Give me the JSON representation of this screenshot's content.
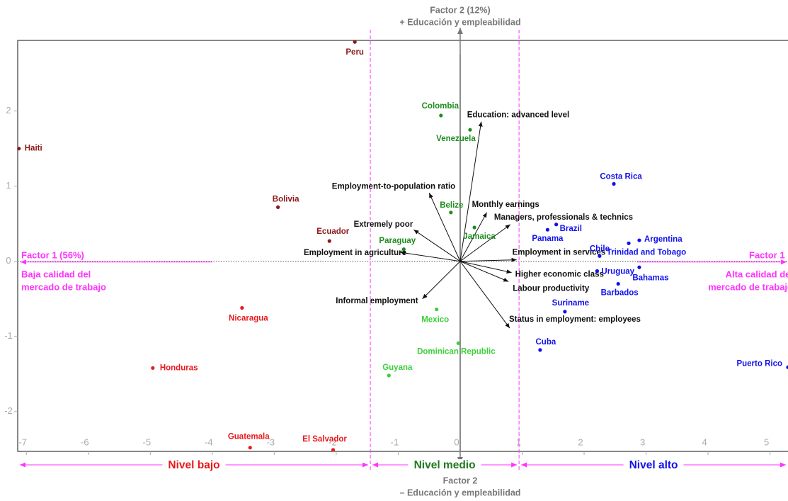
{
  "chart_data": {
    "type": "biplot",
    "top_label": "Factor 2 (12%)",
    "top_sublabel": "+ Educación y empleabilidad",
    "bottom_label": "Factor 2",
    "bottom_sublabel": "– Educación y empleabilidad",
    "left_label": "Factor 1 (56%)",
    "left_sublabel": [
      "Baja calidad del",
      "mercado de trabajo"
    ],
    "right_label": "Factor 1",
    "right_sublabel": [
      "Alta calidad del",
      "mercado de trabajo"
    ],
    "xlim": [
      -7.14,
      5.29
    ],
    "ylim": [
      -2.53,
      2.94
    ],
    "xticks": [
      -7,
      -6,
      -5,
      -4,
      -3,
      -2,
      -1,
      0,
      1,
      2,
      3,
      4,
      5
    ],
    "yticks": [
      -2,
      -1,
      0,
      1,
      2
    ],
    "thresholds": [
      -1.45,
      0.95
    ],
    "threshold_color": "#ff33ff",
    "levels": [
      {
        "label": "Nivel bajo",
        "color": "#e8191c"
      },
      {
        "label": "Nivel medio",
        "color": "#1e7a1e"
      },
      {
        "label": "Nivel alto",
        "color": "#1010ee"
      }
    ],
    "groups": [
      {
        "color": "#8b1a1a",
        "labels": [
          "Peru",
          "Haiti",
          "Bolivia",
          "Ecuador"
        ],
        "x": [
          -1.7,
          -7.12,
          -2.94,
          -2.11
        ],
        "y": [
          2.92,
          1.5,
          0.72,
          0.27
        ]
      },
      {
        "color": "#e8191c",
        "labels": [
          "Nicaragua",
          "Honduras",
          "Guatemala",
          "El Salvador"
        ],
        "x": [
          -3.52,
          -4.96,
          -3.39,
          -2.05
        ],
        "y": [
          -0.62,
          -1.42,
          -2.48,
          -2.51
        ]
      },
      {
        "color": "#1e8c1e",
        "labels": [
          "Colombia",
          "Venezuela",
          "Belize",
          "Jamaica",
          "Paraguay"
        ],
        "x": [
          -0.31,
          0.16,
          -0.15,
          0.23,
          -0.91
        ],
        "y": [
          1.94,
          1.75,
          0.65,
          0.45,
          0.16
        ]
      },
      {
        "color": "#3ccf3c",
        "labels": [
          "Mexico",
          "Dominican Republic",
          "Guyana"
        ],
        "x": [
          -0.38,
          -0.03,
          -1.15
        ],
        "y": [
          -0.64,
          -1.09,
          -1.52
        ]
      },
      {
        "color": "#1010ee",
        "labels": [
          "Costa Rica",
          "Brazil",
          "Panama",
          "Argentina",
          "Trinidad and Tobago",
          "Chile",
          "Uruguay",
          "Bahamas",
          "Barbados",
          "Suriname",
          "Cuba",
          "Puerto Rico"
        ],
        "x": [
          2.48,
          1.55,
          1.41,
          2.89,
          2.72,
          2.25,
          2.21,
          2.89,
          2.55,
          1.69,
          1.29,
          5.29
        ],
        "y": [
          1.03,
          0.49,
          0.42,
          0.28,
          0.24,
          0.07,
          -0.13,
          -0.08,
          -0.3,
          -0.67,
          -1.18,
          -1.41
        ]
      }
    ],
    "vectors": {
      "color": "#111111",
      "labels": [
        "Education: advanced level",
        "Employment-to-population ratio",
        "Monthly earnings",
        "Managers, professionals & technics",
        "Extremely poor",
        "Employment in agriculture",
        "Employment in services",
        "Higher economic class",
        "Labour productivity",
        "Informal employment",
        "Status in employment: employees"
      ],
      "x": [
        0.34,
        -0.5,
        0.43,
        0.81,
        -0.75,
        -0.97,
        0.91,
        0.83,
        0.78,
        -0.61,
        0.8
      ],
      "y": [
        1.86,
        0.91,
        0.65,
        0.49,
        0.42,
        0.12,
        0.02,
        -0.15,
        -0.27,
        -0.5,
        -0.89
      ]
    }
  }
}
